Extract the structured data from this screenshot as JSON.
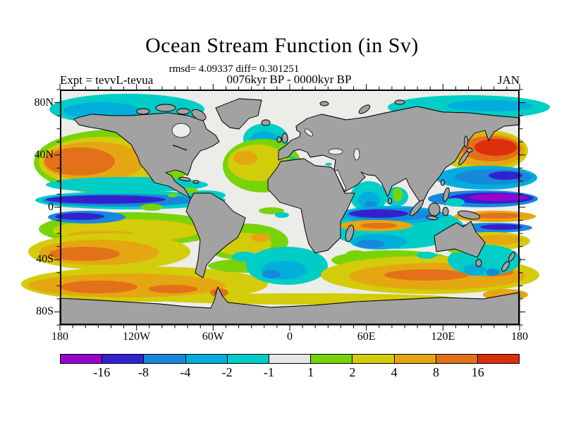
{
  "title": "Ocean Stream Function (in Sv)",
  "stats_line": "rmsd= 4.09337 diff= 0.301251",
  "period_line": "0076kyr BP - 0000kyr BP",
  "experiment_label": "Expt = tevvL-tevua",
  "month_label": "JAN",
  "axes": {
    "lat_ticks": [
      "80N",
      "40N",
      "0",
      "40S",
      "80S"
    ],
    "lon_ticks": [
      "180",
      "120W",
      "60W",
      "0",
      "60E",
      "120E",
      "180"
    ]
  },
  "colorbar": {
    "labels": [
      "-16",
      "-8",
      "-4",
      "-2",
      "-1",
      "1",
      "2",
      "4",
      "8",
      "16"
    ],
    "colors": [
      "#9903ce",
      "#3222cd",
      "#1888dc",
      "#00aedc",
      "#00cdc6",
      "#e6e6e4",
      "#78d309",
      "#d3cc0b",
      "#e5a711",
      "#e27119",
      "#dc2f0c"
    ]
  },
  "colors": {
    "land": "#a2a2a2",
    "ocean_background": "#ecece9",
    "coastline": "#000000",
    "frame": "#000000"
  },
  "chart_data": {
    "type": "heatmap",
    "title": "Ocean Stream Function (in Sv)",
    "units": "Sv",
    "month": "JAN",
    "experiment": "tevvL-tevua",
    "difference_of": "0076kyr BP - 0000kyr BP",
    "rmsd": 4.09337,
    "diff": 0.301251,
    "projection": "equirectangular world map, longitude 180W to 180E, latitude 90N to 90S",
    "contour_levels": [
      -16,
      -8,
      -4,
      -2,
      -1,
      1,
      2,
      4,
      8,
      16
    ],
    "palette": [
      "#9903ce",
      "#3222cd",
      "#1888dc",
      "#00aedc",
      "#00cdc6",
      "#e6e6e4",
      "#78d309",
      "#d3cc0b",
      "#e5a711",
      "#e27119",
      "#dc2f0c"
    ],
    "xlabel_ticks": [
      "180",
      "120W",
      "60W",
      "0",
      "60E",
      "120E",
      "180"
    ],
    "ylabel_ticks": [
      "80N",
      "40N",
      "0",
      "40S",
      "80S"
    ],
    "features": [
      {
        "region": "Northeast Pacific",
        "lon": "180W-140W",
        "lat": "30N-50N",
        "value": "+4 to +16"
      },
      {
        "region": "Northwest Pacific",
        "lon": "150E-180",
        "lat": "30N-48N",
        "value": "+8 to +16"
      },
      {
        "region": "North Pacific tropical band",
        "lon": "180W-130W",
        "lat": "4N-14N",
        "value": "-4 to -8"
      },
      {
        "region": "West Pacific tropical band",
        "lon": "145E-180",
        "lat": "4N-14N",
        "value": "-8 to -16"
      },
      {
        "region": "West Pacific subtropics",
        "lon": "145E-180",
        "lat": "18N-30N",
        "value": "-2 to -8"
      },
      {
        "region": "North Atlantic",
        "lon": "55W-15W",
        "lat": "35N-55N",
        "value": "+1 to +8"
      },
      {
        "region": "Norwegian Sea",
        "lon": "15W-10E",
        "lat": "55N-68N",
        "value": "-1 to -2"
      },
      {
        "region": "Arctic bands (Bering / Siberian shelf)",
        "lat": "65N-82N",
        "value": "-1 to -2"
      },
      {
        "region": "Arabian Sea and Bay of Bengal",
        "lat": "5N-20N",
        "value": "-1 to -4"
      },
      {
        "region": "Equatorial Indian Ocean",
        "lon": "45E-100E",
        "lat": "0-8S",
        "value": "-2 to -8"
      },
      {
        "region": "South Indian band",
        "lon": "45E-80E",
        "lat": "8S-14S",
        "value": "+4 to +8"
      },
      {
        "region": "Tropical South Indian",
        "lon": "55E-95E",
        "lat": "15S-25S",
        "value": "-1 to -4"
      },
      {
        "region": "South Pacific",
        "lon": "180W-120W",
        "lat": "5S-15S",
        "value": "+1 to +4 with -4/-8 streak near dateline"
      },
      {
        "region": "South Pacific subtropics",
        "lon": "180W-140W",
        "lat": "20S-35S",
        "value": "+4 to +8"
      },
      {
        "region": "Southern Ocean, Pacific sector",
        "lat": "45S-60S",
        "value": "+4 to +8"
      },
      {
        "region": "Southern Indian Ocean",
        "lon": "40E-180E",
        "lat": "35S-55S",
        "value": "+2 to +8"
      },
      {
        "region": "Southwest Atlantic / Argentine basin",
        "lon": "60W-10W",
        "lat": "35S-55S",
        "value": "-1 to -2"
      },
      {
        "region": "Tasman Sea / New Zealand",
        "lat": "30S-50S",
        "value": "-1 to -4"
      },
      {
        "region": "Land and |value| < 1 areas",
        "value": "gray / neutral"
      }
    ]
  }
}
